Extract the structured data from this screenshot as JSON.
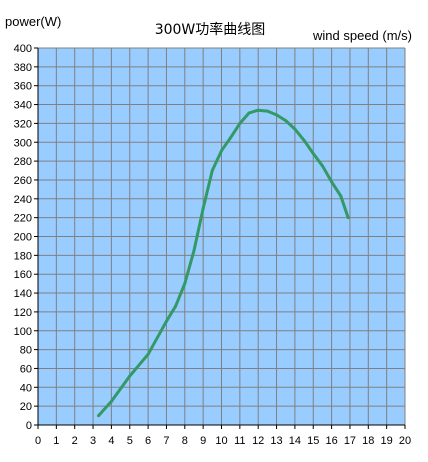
{
  "chart_data": {
    "type": "line",
    "title": "300W功率曲线图",
    "xlabel": "wind speed (m/s)",
    "ylabel": "power(W)",
    "xlim": [
      0,
      20
    ],
    "ylim": [
      0,
      400
    ],
    "x_ticks": [
      "0",
      "1",
      "2",
      "3",
      "4",
      "5",
      "6",
      "7",
      "8",
      "9",
      "10",
      "11",
      "12",
      "13",
      "14",
      "15",
      "16",
      "17",
      "18",
      "19",
      "20"
    ],
    "y_ticks": [
      "0",
      "20",
      "40",
      "60",
      "80",
      "100",
      "120",
      "140",
      "160",
      "180",
      "200",
      "220",
      "240",
      "260",
      "280",
      "300",
      "320",
      "340",
      "360",
      "380",
      "400"
    ],
    "grid": true,
    "series": [
      {
        "x": [
          3.3,
          4,
          5,
          6,
          7,
          7.5,
          8,
          8.5,
          9,
          9.5,
          10,
          10.5,
          11,
          11.5,
          12,
          12.5,
          13,
          13.5,
          14,
          14.5,
          15,
          15.5,
          16,
          16.5,
          16.9
        ],
        "y": [
          10,
          25,
          52,
          75,
          110,
          126,
          150,
          185,
          230,
          270,
          291,
          305,
          320,
          331,
          334,
          333,
          329,
          323,
          314,
          302,
          288,
          275,
          258,
          243,
          220
        ]
      }
    ],
    "colors": {
      "plot_background": "#99ccff",
      "grid": "#808080",
      "line": "#339966"
    }
  }
}
